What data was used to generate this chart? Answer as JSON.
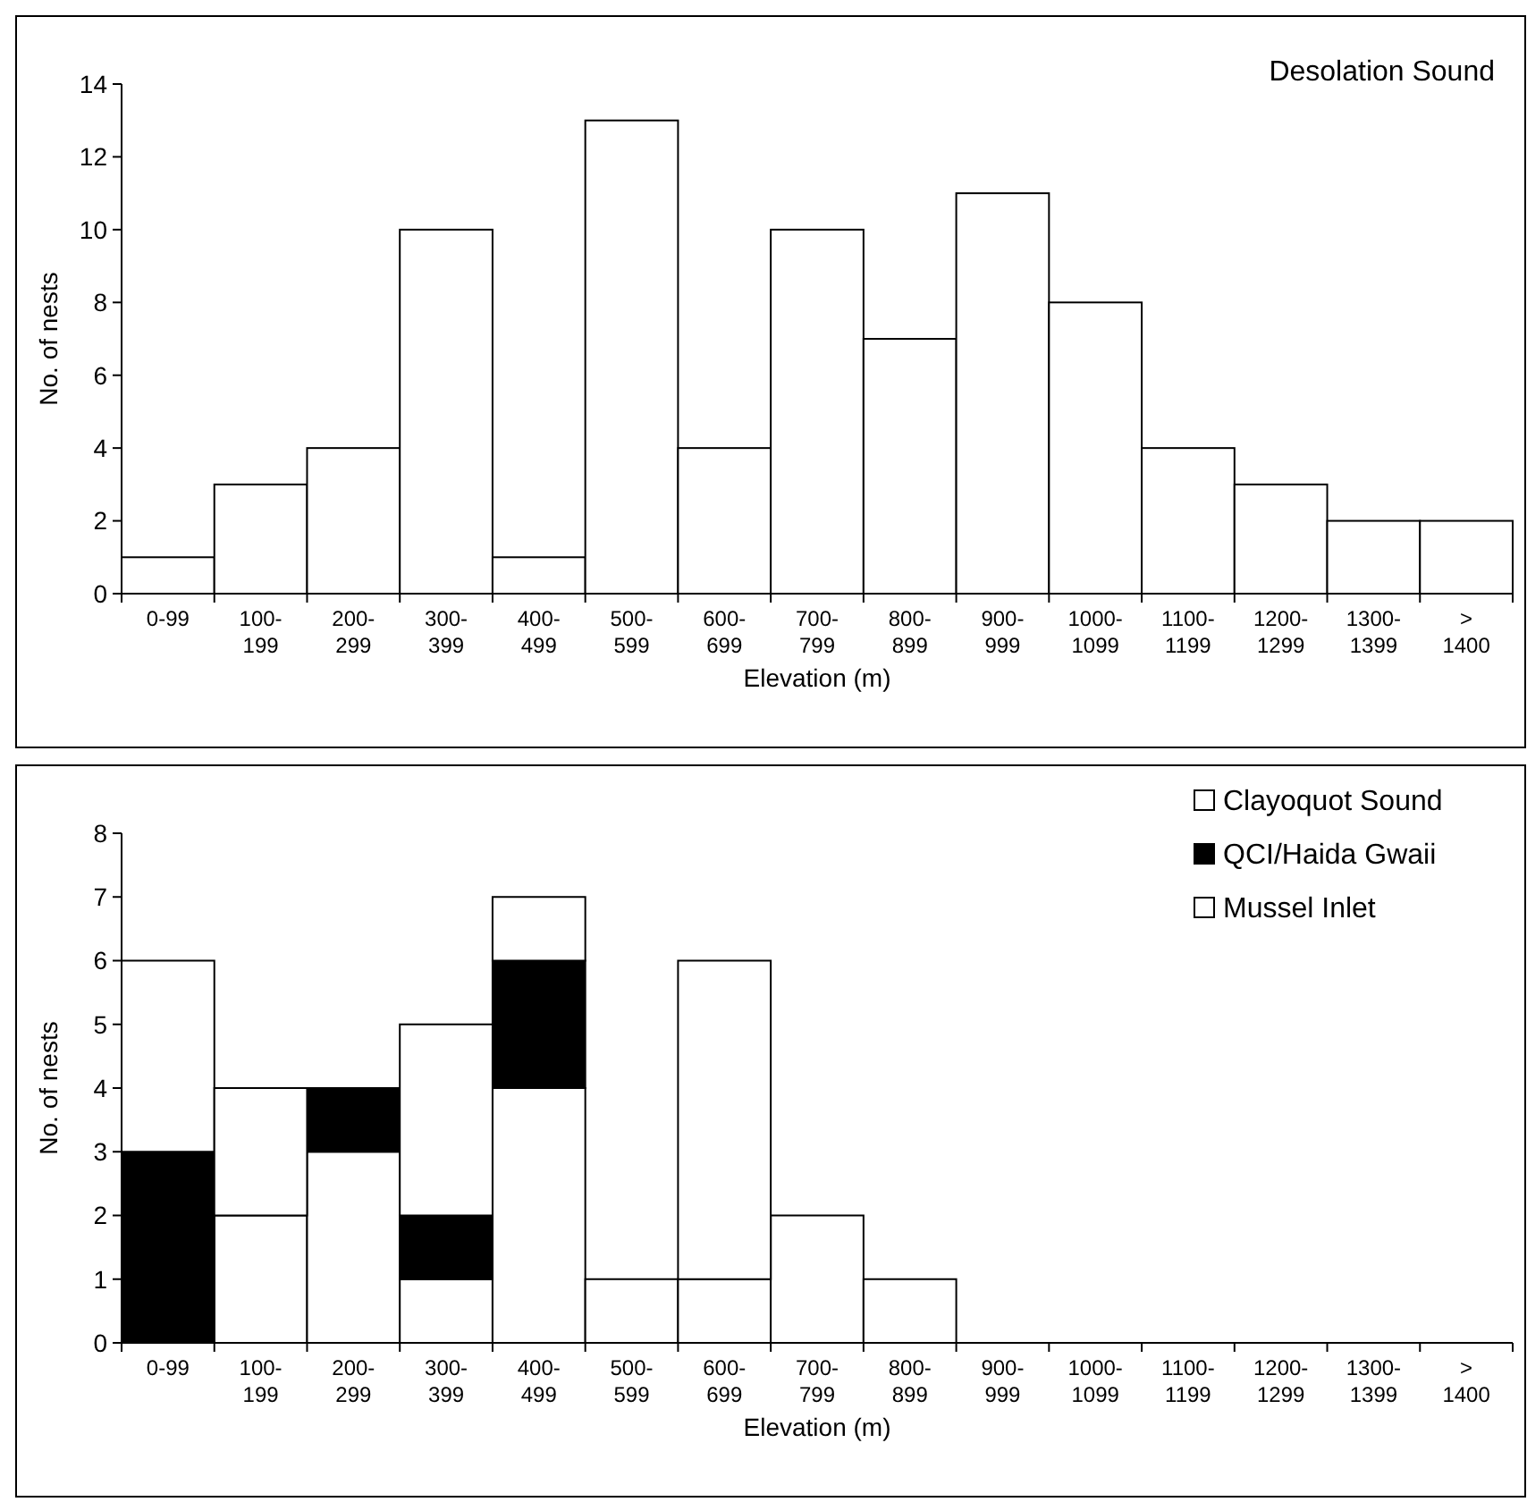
{
  "chart_data": [
    {
      "type": "bar",
      "title": "Desolation Sound",
      "xlabel": "Elevation (m)",
      "ylabel": "No. of nests",
      "categories": [
        "0-99",
        "100- 199",
        "200- 299",
        "300- 399",
        "400- 499",
        "500- 599",
        "600- 699",
        "700- 799",
        "800- 899",
        "900- 999",
        "1000- 1099",
        "1100- 1199",
        "1200- 1299",
        "1300- 1399",
        "> 1400"
      ],
      "series": [
        {
          "color": "#ffffff",
          "values": [
            1,
            3,
            4,
            10,
            1,
            13,
            4,
            10,
            7,
            11,
            8,
            4,
            3,
            2,
            2
          ]
        }
      ],
      "ylim": [
        0,
        14
      ],
      "yticks": [
        0,
        2,
        4,
        6,
        8,
        10,
        12,
        14
      ],
      "grid": false,
      "legend": false
    },
    {
      "type": "bar",
      "xlabel": "Elevation (m)",
      "ylabel": "No. of nests",
      "categories": [
        "0-99",
        "100- 199",
        "200- 299",
        "300- 399",
        "400- 499",
        "500- 599",
        "600- 699",
        "700- 799",
        "800- 899",
        "900- 999",
        "1000- 1099",
        "1100- 1199",
        "1200- 1299",
        "1300- 1399",
        "> 1400"
      ],
      "stacked": true,
      "series": [
        {
          "name": "Mussel Inlet",
          "color": "#ffffff",
          "values": [
            0,
            2,
            3,
            1,
            4,
            1,
            1,
            2,
            1,
            0,
            0,
            0,
            0,
            0,
            0
          ]
        },
        {
          "name": "QCI/Haida Gwaii",
          "color": "#000000",
          "values": [
            3,
            0,
            1,
            1,
            2,
            0,
            0,
            0,
            0,
            0,
            0,
            0,
            0,
            0,
            0
          ]
        },
        {
          "name": "Clayoquot Sound",
          "color": "#ffffff",
          "values": [
            3,
            2,
            0,
            3,
            1,
            0,
            5,
            0,
            0,
            0,
            0,
            0,
            0,
            0,
            0
          ]
        }
      ],
      "ylim": [
        0,
        8
      ],
      "yticks": [
        0,
        1,
        2,
        3,
        4,
        5,
        6,
        7,
        8
      ],
      "grid": false,
      "legend": "top right"
    }
  ]
}
